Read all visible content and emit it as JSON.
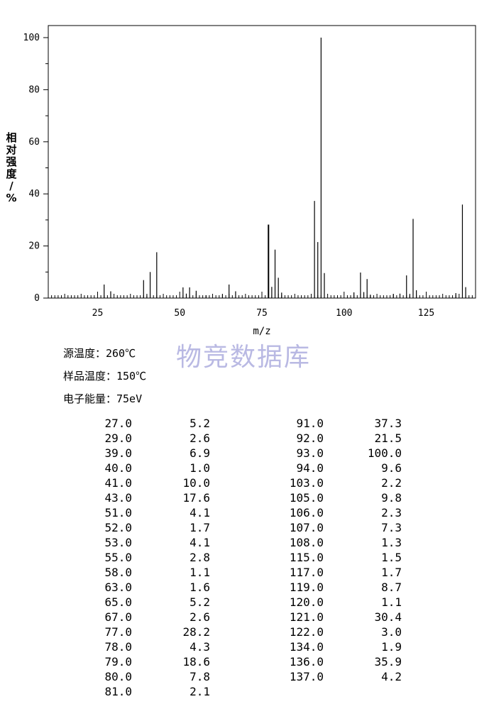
{
  "chart_data": {
    "type": "bar",
    "xlabel": "m/z",
    "ylabel": "相对强度/%",
    "ylabel_chars": [
      "相",
      "对",
      "强",
      "度",
      "/",
      "%"
    ],
    "xlim": [
      10,
      140
    ],
    "ylim": [
      0,
      105
    ],
    "xticks": [
      25,
      50,
      75,
      100,
      125
    ],
    "yticks": [
      0,
      20,
      40,
      60,
      80,
      100
    ],
    "grid": false,
    "peaks": [
      {
        "x": 27,
        "y": 5.2
      },
      {
        "x": 29,
        "y": 2.6
      },
      {
        "x": 39,
        "y": 6.9
      },
      {
        "x": 40,
        "y": 1.0
      },
      {
        "x": 41,
        "y": 10.0
      },
      {
        "x": 43,
        "y": 17.6
      },
      {
        "x": 51,
        "y": 4.1
      },
      {
        "x": 52,
        "y": 1.7
      },
      {
        "x": 53,
        "y": 4.1
      },
      {
        "x": 55,
        "y": 2.8
      },
      {
        "x": 58,
        "y": 1.1
      },
      {
        "x": 63,
        "y": 1.6
      },
      {
        "x": 65,
        "y": 5.2
      },
      {
        "x": 67,
        "y": 2.6
      },
      {
        "x": 77,
        "y": 28.2
      },
      {
        "x": 78,
        "y": 4.3
      },
      {
        "x": 79,
        "y": 18.6
      },
      {
        "x": 80,
        "y": 7.8
      },
      {
        "x": 81,
        "y": 2.1
      },
      {
        "x": 91,
        "y": 37.3
      },
      {
        "x": 92,
        "y": 21.5
      },
      {
        "x": 93,
        "y": 100.0
      },
      {
        "x": 94,
        "y": 9.6
      },
      {
        "x": 103,
        "y": 2.2
      },
      {
        "x": 105,
        "y": 9.8
      },
      {
        "x": 106,
        "y": 2.3
      },
      {
        "x": 107,
        "y": 7.3
      },
      {
        "x": 108,
        "y": 1.3
      },
      {
        "x": 115,
        "y": 1.5
      },
      {
        "x": 117,
        "y": 1.7
      },
      {
        "x": 119,
        "y": 8.7
      },
      {
        "x": 120,
        "y": 1.1
      },
      {
        "x": 121,
        "y": 30.4
      },
      {
        "x": 122,
        "y": 3.0
      },
      {
        "x": 134,
        "y": 1.9
      },
      {
        "x": 136,
        "y": 35.9
      },
      {
        "x": 137,
        "y": 4.2
      }
    ]
  },
  "watermark": "物竞数据库",
  "conditions": {
    "source_temp": "源温度：260℃",
    "sample_temp": "样品温度：150℃",
    "electron_energy": "电子能量：75eV"
  },
  "table": {
    "left": [
      [
        "27.0",
        "5.2"
      ],
      [
        "29.0",
        "2.6"
      ],
      [
        "39.0",
        "6.9"
      ],
      [
        "40.0",
        "1.0"
      ],
      [
        "41.0",
        "10.0"
      ],
      [
        "43.0",
        "17.6"
      ],
      [
        "51.0",
        "4.1"
      ],
      [
        "52.0",
        "1.7"
      ],
      [
        "53.0",
        "4.1"
      ],
      [
        "55.0",
        "2.8"
      ],
      [
        "58.0",
        "1.1"
      ],
      [
        "63.0",
        "1.6"
      ],
      [
        "65.0",
        "5.2"
      ],
      [
        "67.0",
        "2.6"
      ],
      [
        "77.0",
        "28.2"
      ],
      [
        "78.0",
        "4.3"
      ],
      [
        "79.0",
        "18.6"
      ],
      [
        "80.0",
        "7.8"
      ],
      [
        "81.0",
        "2.1"
      ]
    ],
    "right": [
      [
        "91.0",
        "37.3"
      ],
      [
        "92.0",
        "21.5"
      ],
      [
        "93.0",
        "100.0"
      ],
      [
        "94.0",
        "9.6"
      ],
      [
        "103.0",
        "2.2"
      ],
      [
        "105.0",
        "9.8"
      ],
      [
        "106.0",
        "2.3"
      ],
      [
        "107.0",
        "7.3"
      ],
      [
        "108.0",
        "1.3"
      ],
      [
        "115.0",
        "1.5"
      ],
      [
        "117.0",
        "1.7"
      ],
      [
        "119.0",
        "8.7"
      ],
      [
        "120.0",
        "1.1"
      ],
      [
        "121.0",
        "30.4"
      ],
      [
        "122.0",
        "3.0"
      ],
      [
        "134.0",
        "1.9"
      ],
      [
        "136.0",
        "35.9"
      ],
      [
        "137.0",
        "4.2"
      ]
    ]
  }
}
